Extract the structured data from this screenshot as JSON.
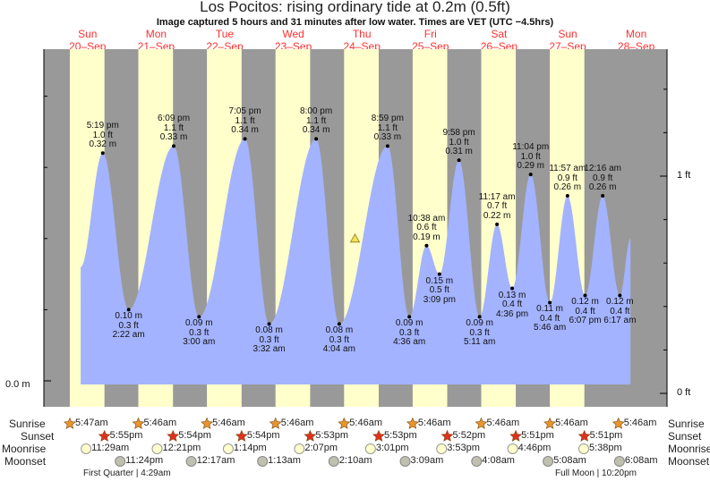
{
  "title": "Los Pocitos: rising  ordinary tide at 0.2m (0.5ft)",
  "subtitle": "Image captured 5 hours and 31 minutes after low water. Times are VET (UTC −4.5hrs)",
  "colors": {
    "day": "#ffffcc",
    "night": "#999999",
    "water": "#a3b3ff",
    "header": "#ff3030",
    "sunrise": "#e8952e",
    "sunset": "#e03020",
    "moonrise": "#ffffcc",
    "moonset": "#c0c0b0"
  },
  "days": [
    {
      "dow": "Sun",
      "date": "20–Sep"
    },
    {
      "dow": "Mon",
      "date": "21–Sep"
    },
    {
      "dow": "Tue",
      "date": "22–Sep"
    },
    {
      "dow": "Wed",
      "date": "23–Sep"
    },
    {
      "dow": "Thu",
      "date": "24–Sep"
    },
    {
      "dow": "Fri",
      "date": "25–Sep"
    },
    {
      "dow": "Sat",
      "date": "26–Sep"
    },
    {
      "dow": "Sun",
      "date": "27–Sep"
    },
    {
      "dow": "Mon",
      "date": "28–Sep"
    }
  ],
  "axes": {
    "left_label": "0.0 m",
    "right_top": "1 ft",
    "right_bottom": "0 ft"
  },
  "chart_data": {
    "type": "area",
    "title": "Los Pocitos tide",
    "units": [
      "m",
      "ft"
    ],
    "curve_start": {
      "day": 0,
      "hour": 9.6,
      "m": 0.16
    },
    "curve_end": {
      "day": 8,
      "hour": 10.0,
      "m": 0.2
    },
    "now": {
      "day": 4,
      "time": "9:35am",
      "m": 0.2
    },
    "extremes": [
      {
        "type": "high",
        "day": 0,
        "time": "5:19 pm",
        "ft": "1.0 ft",
        "m": 0.32
      },
      {
        "type": "low",
        "day": 1,
        "time": "2:22 am",
        "ft": "0.3 ft",
        "m": 0.1
      },
      {
        "type": "high",
        "day": 1,
        "time": "6:09 pm",
        "ft": "1.1 ft",
        "m": 0.33
      },
      {
        "type": "low",
        "day": 2,
        "time": "3:00 am",
        "ft": "0.3 ft",
        "m": 0.09
      },
      {
        "type": "high",
        "day": 2,
        "time": "7:05 pm",
        "ft": "1.1 ft",
        "m": 0.34
      },
      {
        "type": "low",
        "day": 3,
        "time": "3:32 am",
        "ft": "0.3 ft",
        "m": 0.08
      },
      {
        "type": "high",
        "day": 3,
        "time": "8:00 pm",
        "ft": "1.1 ft",
        "m": 0.34
      },
      {
        "type": "low",
        "day": 4,
        "time": "4:04 am",
        "ft": "0.3 ft",
        "m": 0.08
      },
      {
        "type": "high",
        "day": 4,
        "time": "8:59 pm",
        "ft": "1.1 ft",
        "m": 0.33
      },
      {
        "type": "low",
        "day": 5,
        "time": "4:36 am",
        "ft": "0.3 ft",
        "m": 0.09
      },
      {
        "type": "high",
        "day": 5,
        "time": "10:38 am",
        "ft": "0.6 ft",
        "m": 0.19
      },
      {
        "type": "low",
        "day": 5,
        "time": "3:09 pm",
        "ft": "0.5 ft",
        "m": 0.15
      },
      {
        "type": "high",
        "day": 5,
        "time": "9:58 pm",
        "ft": "1.0 ft",
        "m": 0.31
      },
      {
        "type": "low",
        "day": 6,
        "time": "5:11 am",
        "ft": "0.3 ft",
        "m": 0.09
      },
      {
        "type": "high",
        "day": 6,
        "time": "11:17 am",
        "ft": "0.7 ft",
        "m": 0.22
      },
      {
        "type": "low",
        "day": 6,
        "time": "4:36 pm",
        "ft": "0.4 ft",
        "m": 0.13
      },
      {
        "type": "high",
        "day": 6,
        "time": "11:04 pm",
        "ft": "1.0 ft",
        "m": 0.29
      },
      {
        "type": "low",
        "day": 7,
        "time": "5:46 am",
        "ft": "0.4 ft",
        "m": 0.11
      },
      {
        "type": "high",
        "day": 7,
        "time": "11:57 am",
        "ft": "0.9 ft",
        "m": 0.26
      },
      {
        "type": "low",
        "day": 7,
        "time": "6:07 pm",
        "ft": "0.4 ft",
        "m": 0.12
      },
      {
        "type": "high",
        "day": 8,
        "time": "12:16 am",
        "ft": "0.9 ft",
        "m": 0.26
      },
      {
        "type": "low",
        "day": 8,
        "time": "6:17 am",
        "ft": "0.4 ft",
        "m": 0.12
      }
    ]
  },
  "rows": {
    "sunrise": "Sunrise",
    "sunset": "Sunset",
    "moonrise": "Moonrise",
    "moonset": "Moonset"
  },
  "sunrise": [
    {
      "day": 0,
      "time": "5:47am"
    },
    {
      "day": 1,
      "time": "5:46am"
    },
    {
      "day": 2,
      "time": "5:46am"
    },
    {
      "day": 3,
      "time": "5:46am"
    },
    {
      "day": 4,
      "time": "5:46am"
    },
    {
      "day": 5,
      "time": "5:46am"
    },
    {
      "day": 6,
      "time": "5:46am"
    },
    {
      "day": 7,
      "time": "5:46am"
    },
    {
      "day": 8,
      "time": "5:46am"
    }
  ],
  "sunset": [
    {
      "day": 0,
      "time": "5:55pm"
    },
    {
      "day": 1,
      "time": "5:54pm"
    },
    {
      "day": 2,
      "time": "5:54pm"
    },
    {
      "day": 3,
      "time": "5:53pm"
    },
    {
      "day": 4,
      "time": "5:53pm"
    },
    {
      "day": 5,
      "time": "5:52pm"
    },
    {
      "day": 6,
      "time": "5:51pm"
    },
    {
      "day": 7,
      "time": "5:51pm"
    }
  ],
  "moonrise": [
    {
      "day": 0,
      "time": "11:29am"
    },
    {
      "day": 1,
      "time": "12:21pm"
    },
    {
      "day": 2,
      "time": "1:14pm"
    },
    {
      "day": 3,
      "time": "2:07pm"
    },
    {
      "day": 4,
      "time": "3:01pm"
    },
    {
      "day": 5,
      "time": "3:53pm"
    },
    {
      "day": 6,
      "time": "4:46pm"
    },
    {
      "day": 7,
      "time": "5:38pm"
    }
  ],
  "moonset": [
    {
      "day": 0,
      "time": "11:24pm"
    },
    {
      "day": 2,
      "time": "12:17am"
    },
    {
      "day": 3,
      "time": "1:13am"
    },
    {
      "day": 4,
      "time": "2:10am"
    },
    {
      "day": 5,
      "time": "3:09am"
    },
    {
      "day": 6,
      "time": "4:08am"
    },
    {
      "day": 7,
      "time": "5:08am"
    },
    {
      "day": 8,
      "time": "6:08am"
    }
  ],
  "phases": [
    {
      "day": 0,
      "label": "First Quarter | 4:29am"
    },
    {
      "day": 7,
      "label": "Full Moon | 10:20pm"
    }
  ]
}
